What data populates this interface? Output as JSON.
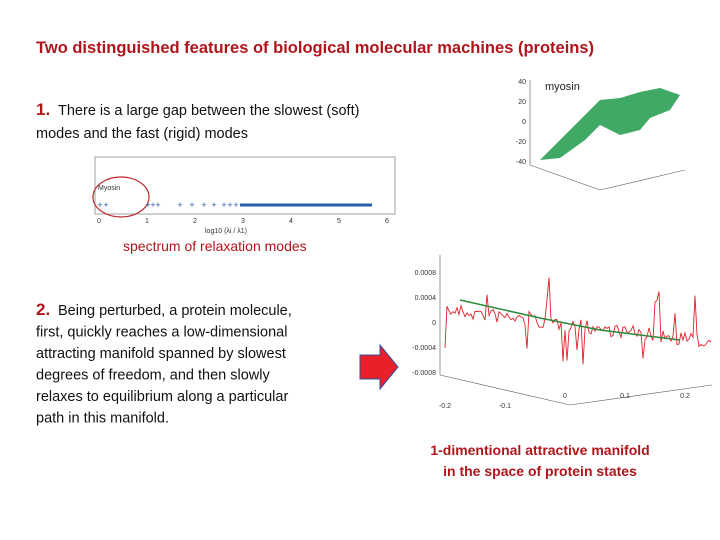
{
  "title": "Two distinguished features of biological molecular machines (proteins)",
  "point1": {
    "number": "1.",
    "lines": [
      "There is a large gap between the slowest (soft)",
      "modes and the fast (rigid) modes"
    ]
  },
  "spectrum": {
    "legend": "Myosin",
    "ticks": [
      "0",
      "1",
      "2",
      "3",
      "4",
      "5",
      "6"
    ],
    "xlabel": "log10 (λi / λ1)",
    "caption": "spectrum of relaxation modes"
  },
  "myosin_plot": {
    "label": "myosin",
    "yticks": [
      "40",
      "20",
      "0",
      "-20",
      "-40"
    ]
  },
  "point2": {
    "number": "2.",
    "lines": [
      "Being perturbed, a protein molecule,",
      "first, quickly reaches a low-­dimensional",
      "attracting manifold spanned by slowest",
      "degrees of freedom, and then slowly",
      "relaxes to equilibrium along a particular",
      "path in this manifold."
    ]
  },
  "manifold_plot": {
    "zticks": [
      "0.0008",
      "0.0004",
      "0",
      "-0.0004",
      "-0.0008"
    ],
    "xticks": [
      "-0.2",
      "-0.1",
      "0",
      "0.1",
      "0.2"
    ]
  },
  "caption2": {
    "lines": [
      "1-dimentional attractive manifold",
      "in the space of protein states"
    ]
  }
}
